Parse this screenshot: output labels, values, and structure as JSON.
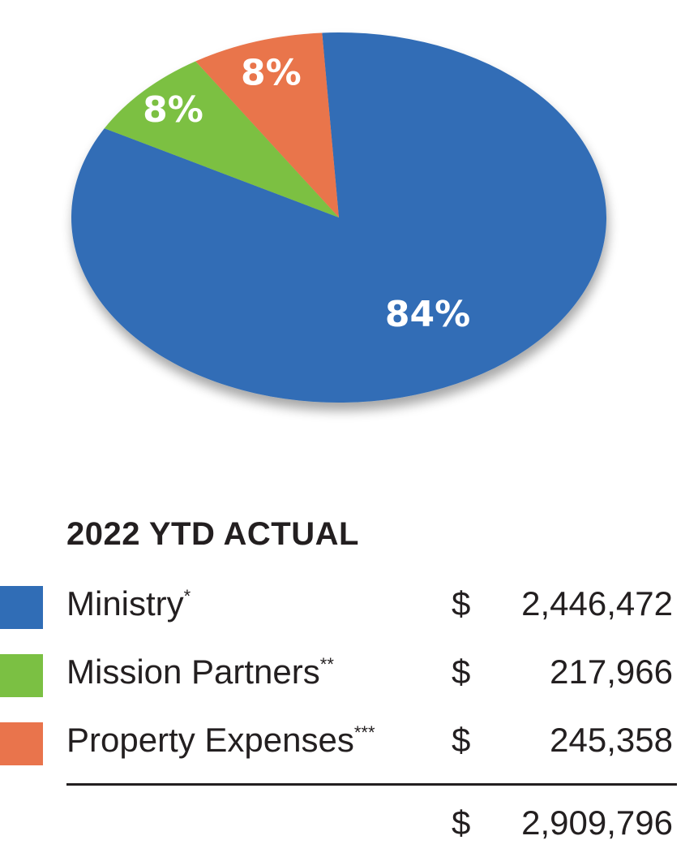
{
  "chart_data": {
    "type": "pie",
    "title": "",
    "slices": [
      {
        "label": "Ministry",
        "value": 84,
        "display": "84%",
        "color": "#306db6"
      },
      {
        "label": "Property Expenses",
        "value": 8,
        "display": "8%",
        "color": "#e9744c"
      },
      {
        "label": "Mission Partners",
        "value": 8,
        "display": "8%",
        "color": "#7bc043"
      }
    ]
  },
  "legend": {
    "title": "2022 YTD ACTUAL",
    "rows": [
      {
        "name": "Ministry",
        "mark": "*",
        "currency": "$",
        "amount": "2,446,472",
        "color": "#306db6"
      },
      {
        "name": "Mission Partners",
        "mark": "**",
        "currency": "$",
        "amount": "217,966",
        "color": "#7bc043"
      },
      {
        "name": "Property Expenses",
        "mark": "***",
        "currency": "$",
        "amount": "245,358",
        "color": "#e9744c"
      }
    ],
    "total": {
      "currency": "$",
      "amount": "2,909,796"
    }
  }
}
